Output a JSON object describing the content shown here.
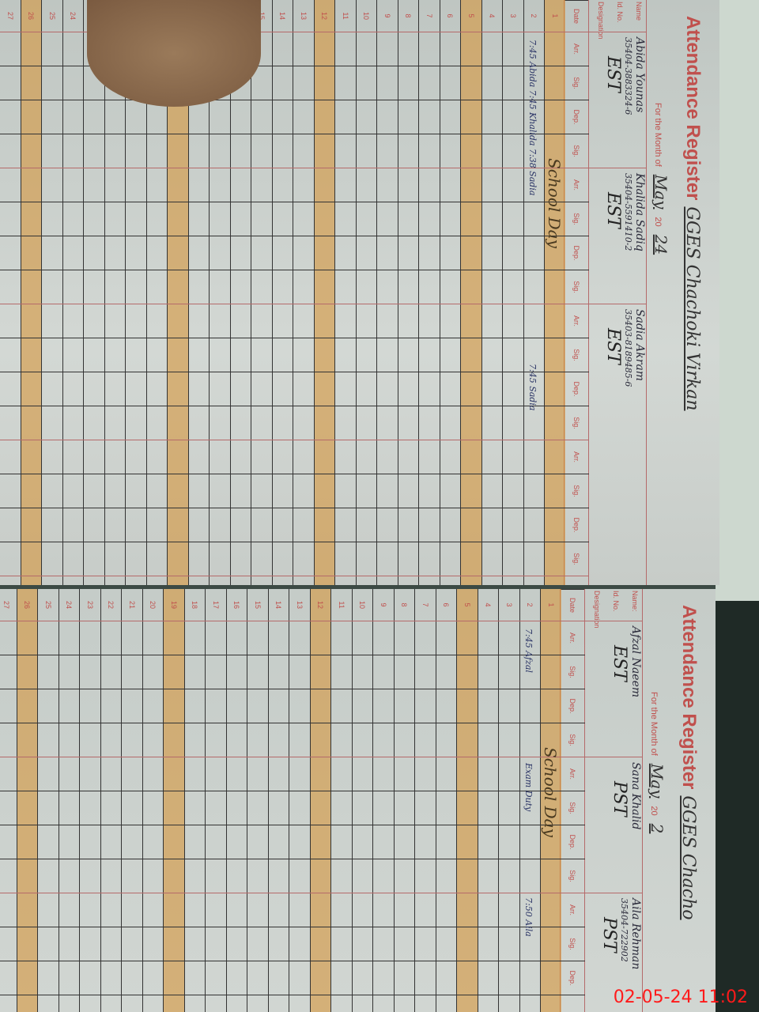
{
  "form_title": "Attendance Register",
  "pages": [
    {
      "school": "GGES Chachoki Virkan",
      "month_label": "For the Month of",
      "month": "May",
      "year_label": "20",
      "year": "24",
      "name_label": "Name",
      "cnic_label": "Id. No.",
      "designation_label": "Designation",
      "employees": [
        {
          "name": "Abida Younas",
          "cnic": "35404-3883324-6",
          "designation": "EST"
        },
        {
          "name": "Khalida Sadiq",
          "cnic": "35404-5591410-2",
          "designation": "EST"
        },
        {
          "name": "Sadia Akram",
          "cnic": "35403-8189485-6",
          "designation": "EST"
        }
      ],
      "notes": {
        "school_day": "School Day",
        "row2_a": "7:45 Abida 7:45 Khalida 7:38 Sadia",
        "row2_b": "7:45 Sadia"
      }
    },
    {
      "school": "GGES Chacho",
      "month_label": "For the Month of",
      "month": "May",
      "year_label": "20",
      "year": "2",
      "name_label": "Name:",
      "cnic_label": "Id. No.",
      "designation_label": "Designation",
      "employees": [
        {
          "name": "Afzal Naeem",
          "cnic": "",
          "designation": "EST"
        },
        {
          "name": "Sana Khalid",
          "cnic": "",
          "designation": "PST"
        },
        {
          "name": "Aila Rehman",
          "cnic": "35404-722902",
          "designation": "PST"
        }
      ],
      "notes": {
        "school_day": "School Day",
        "row2_a": "7:45 Afzal",
        "row2_b": "Exam Duty",
        "row2_c": "7:50 Aila"
      }
    }
  ],
  "column_headers": {
    "date": "Date",
    "arr": "Arr.",
    "sig": "Sig.",
    "dep": "Dep."
  },
  "dates": [
    "1",
    "2",
    "3",
    "4",
    "5",
    "6",
    "7",
    "8",
    "9",
    "10",
    "11",
    "12",
    "13",
    "14",
    "15",
    "16",
    "17",
    "18",
    "19",
    "20",
    "21",
    "22",
    "23",
    "24",
    "25",
    "26",
    "27"
  ],
  "highlighted_dates": [
    "1",
    "5",
    "12",
    "19",
    "26"
  ],
  "timestamp": "02-05-24  11:02",
  "colors": {
    "header_red": "#c0504d",
    "highlight": "#d6963c",
    "timestamp": "#ff1a1a"
  }
}
